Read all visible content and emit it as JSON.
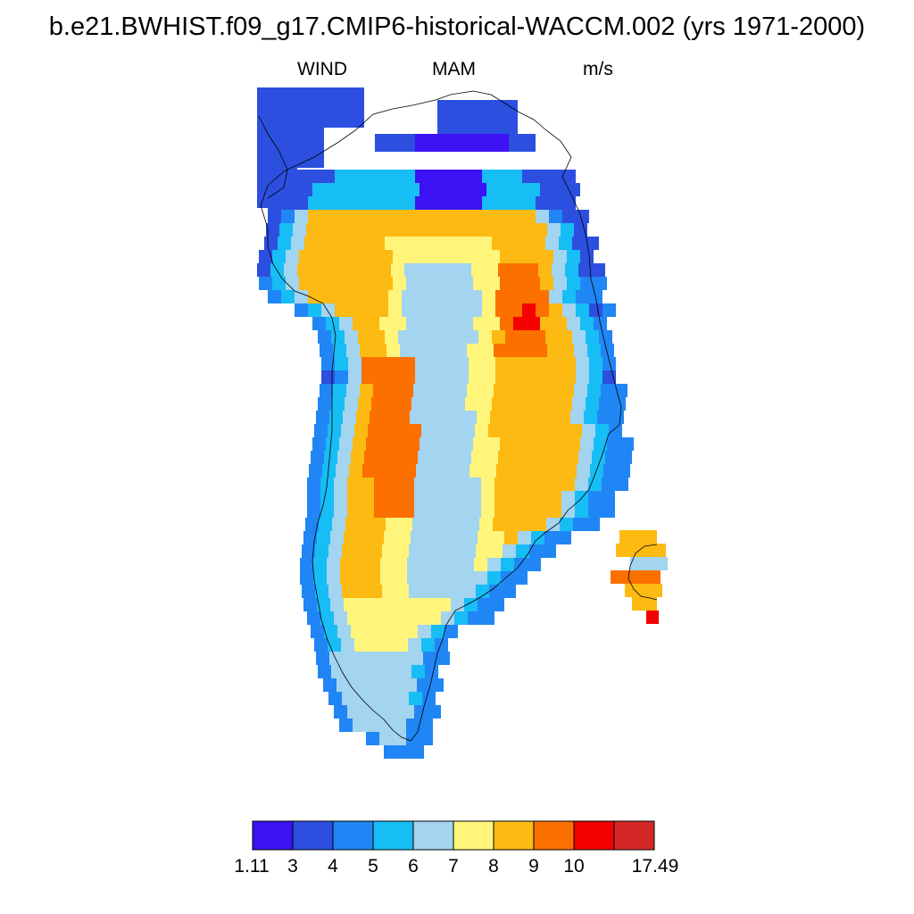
{
  "figure": {
    "title": "b.e21.BWHIST.f09_g17.CMIP6-historical-WACCM.002 (yrs 1971-2000)",
    "variable": "WIND",
    "season": "MAM",
    "units": "m/s"
  },
  "colorbar": {
    "colors": [
      "#3c12f5",
      "#2c4fe0",
      "#2186f5",
      "#17bdf5",
      "#a3d4f0",
      "#fff57a",
      "#fcba12",
      "#fc7000",
      "#f50000",
      "#d42828"
    ],
    "labels": [
      "1.11",
      "3",
      "4",
      "5",
      "6",
      "7",
      "8",
      "9",
      "10",
      "17.49"
    ]
  },
  "chart_data": {
    "type": "heatmap",
    "title": "b.e21.BWHIST.f09_g17.CMIP6-historical-WACCM.002 (yrs 1971-2000)",
    "variable": "WIND",
    "season": "MAM",
    "units": "m/s",
    "region": "Greenland",
    "contour_levels": [
      1.11,
      3,
      4,
      5,
      6,
      7,
      8,
      9,
      10,
      17.49
    ],
    "value_range": [
      1.11,
      17.49
    ],
    "features": [
      {
        "location": "interior ice sheet ridge",
        "wind_m_s": "6-7"
      },
      {
        "location": "western slope band",
        "wind_m_s": "8-10"
      },
      {
        "location": "eastern slope band",
        "wind_m_s": "8-10"
      },
      {
        "location": "northeast slope maximum",
        "wind_m_s": ">10"
      },
      {
        "location": "coastal margins",
        "wind_m_s": "1.11-5"
      },
      {
        "location": "Iceland (right edge)",
        "wind_m_s": "7-10"
      }
    ]
  }
}
